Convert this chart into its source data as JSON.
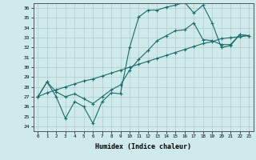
{
  "xlabel": "Humidex (Indice chaleur)",
  "xlim": [
    -0.5,
    23.5
  ],
  "ylim": [
    23.5,
    36.5
  ],
  "yticks": [
    24,
    25,
    26,
    27,
    28,
    29,
    30,
    31,
    32,
    33,
    34,
    35,
    36
  ],
  "xticks": [
    0,
    1,
    2,
    3,
    4,
    5,
    6,
    7,
    8,
    9,
    10,
    11,
    12,
    13,
    14,
    15,
    16,
    17,
    18,
    19,
    20,
    21,
    22,
    23
  ],
  "bg_color": "#ceeaea",
  "line_color": "#1a6b6b",
  "line1_y": [
    27.0,
    28.5,
    27.0,
    24.8,
    26.5,
    26.0,
    24.3,
    26.5,
    27.4,
    27.3,
    32.0,
    35.1,
    35.8,
    35.8,
    36.1,
    36.3,
    36.6,
    35.5,
    36.3,
    34.5,
    32.0,
    32.2,
    33.3,
    33.2
  ],
  "line2_y": [
    27.0,
    28.5,
    27.5,
    27.0,
    27.3,
    26.8,
    26.3,
    27.0,
    27.7,
    28.2,
    29.7,
    30.8,
    31.7,
    32.7,
    33.2,
    33.7,
    33.8,
    34.5,
    32.8,
    32.7,
    32.3,
    32.3,
    33.3,
    33.2
  ],
  "line3_y": [
    27.0,
    27.4,
    27.7,
    28.0,
    28.3,
    28.6,
    28.8,
    29.1,
    29.4,
    29.7,
    30.0,
    30.3,
    30.6,
    30.9,
    31.2,
    31.5,
    31.8,
    32.1,
    32.4,
    32.6,
    32.9,
    33.0,
    33.1,
    33.2
  ]
}
